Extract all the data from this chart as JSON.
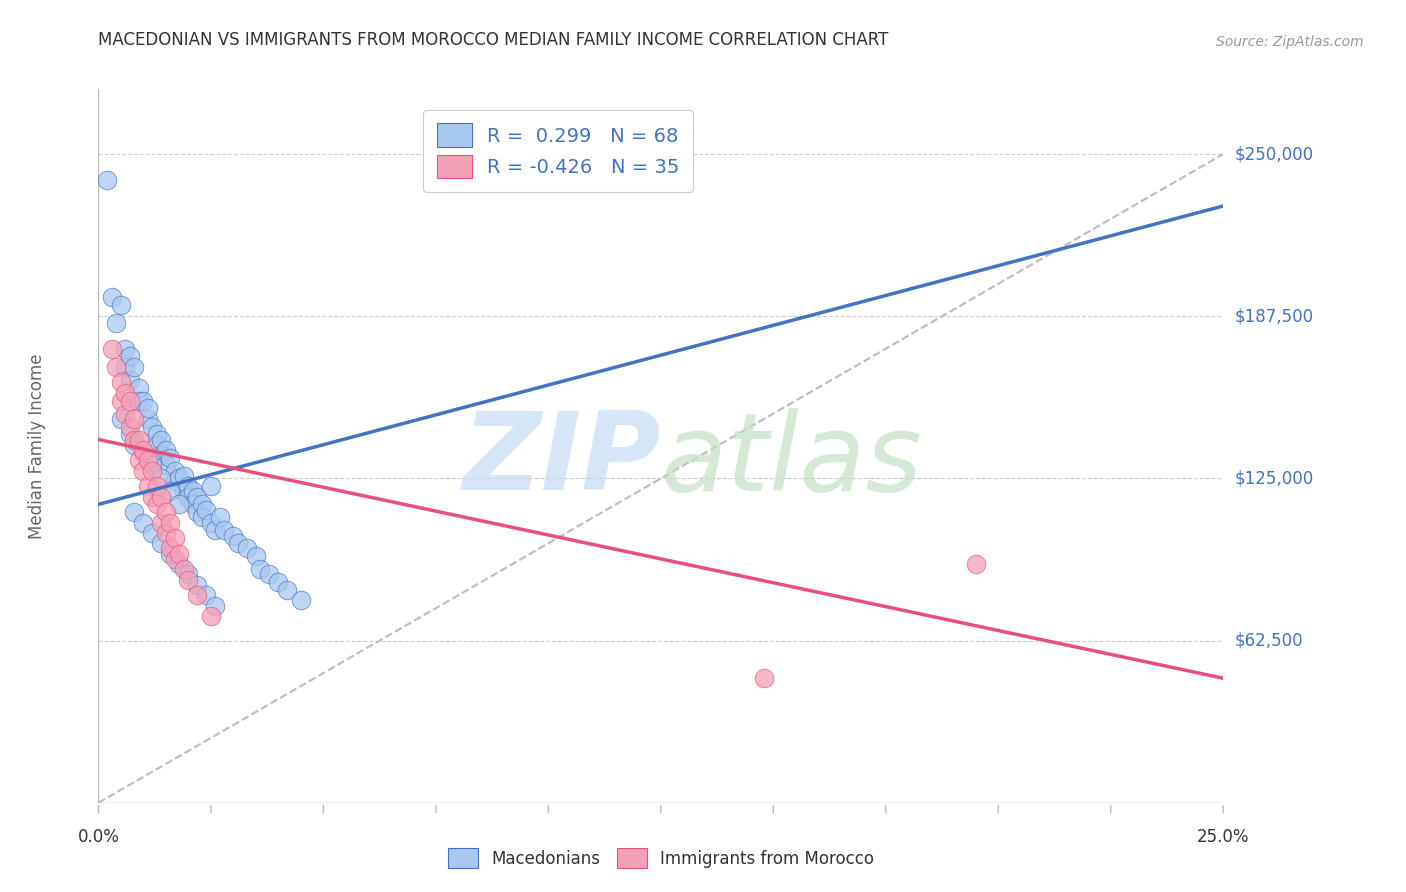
{
  "title": "MACEDONIAN VS IMMIGRANTS FROM MOROCCO MEDIAN FAMILY INCOME CORRELATION CHART",
  "source": "Source: ZipAtlas.com",
  "ylabel": "Median Family Income",
  "ytick_labels": [
    "$62,500",
    "$125,000",
    "$187,500",
    "$250,000"
  ],
  "ytick_values": [
    62500,
    125000,
    187500,
    250000
  ],
  "ymin": 0,
  "ymax": 275000,
  "xmin": 0.0,
  "xmax": 0.25,
  "blue_color": "#A8C8F0",
  "pink_color": "#F4A0B8",
  "blue_line_color": "#4472C4",
  "pink_line_color": "#E8507A",
  "dashed_line_color": "#BBBBBB",
  "background_color": "#FFFFFF",
  "macedonian_points": [
    [
      0.002,
      240000
    ],
    [
      0.003,
      195000
    ],
    [
      0.004,
      185000
    ],
    [
      0.005,
      192000
    ],
    [
      0.006,
      175000
    ],
    [
      0.006,
      168000
    ],
    [
      0.007,
      172000
    ],
    [
      0.007,
      163000
    ],
    [
      0.008,
      168000
    ],
    [
      0.009,
      160000
    ],
    [
      0.009,
      155000
    ],
    [
      0.01,
      155000
    ],
    [
      0.011,
      148000
    ],
    [
      0.011,
      152000
    ],
    [
      0.012,
      145000
    ],
    [
      0.013,
      142000
    ],
    [
      0.013,
      138000
    ],
    [
      0.014,
      140000
    ],
    [
      0.014,
      134000
    ],
    [
      0.015,
      136000
    ],
    [
      0.015,
      130000
    ],
    [
      0.016,
      133000
    ],
    [
      0.017,
      128000
    ],
    [
      0.017,
      124000
    ],
    [
      0.018,
      125000
    ],
    [
      0.019,
      126000
    ],
    [
      0.019,
      120000
    ],
    [
      0.02,
      122000
    ],
    [
      0.02,
      118000
    ],
    [
      0.021,
      120000
    ],
    [
      0.021,
      115000
    ],
    [
      0.022,
      118000
    ],
    [
      0.022,
      112000
    ],
    [
      0.023,
      115000
    ],
    [
      0.023,
      110000
    ],
    [
      0.024,
      113000
    ],
    [
      0.025,
      108000
    ],
    [
      0.025,
      122000
    ],
    [
      0.026,
      105000
    ],
    [
      0.027,
      110000
    ],
    [
      0.028,
      105000
    ],
    [
      0.03,
      103000
    ],
    [
      0.031,
      100000
    ],
    [
      0.033,
      98000
    ],
    [
      0.035,
      95000
    ],
    [
      0.036,
      90000
    ],
    [
      0.038,
      88000
    ],
    [
      0.04,
      85000
    ],
    [
      0.042,
      82000
    ],
    [
      0.045,
      78000
    ],
    [
      0.005,
      148000
    ],
    [
      0.007,
      142000
    ],
    [
      0.008,
      138000
    ],
    [
      0.01,
      135000
    ],
    [
      0.012,
      130000
    ],
    [
      0.014,
      125000
    ],
    [
      0.016,
      120000
    ],
    [
      0.018,
      115000
    ],
    [
      0.008,
      112000
    ],
    [
      0.01,
      108000
    ],
    [
      0.012,
      104000
    ],
    [
      0.014,
      100000
    ],
    [
      0.016,
      96000
    ],
    [
      0.018,
      92000
    ],
    [
      0.02,
      88000
    ],
    [
      0.022,
      84000
    ],
    [
      0.024,
      80000
    ],
    [
      0.026,
      76000
    ]
  ],
  "morocco_points": [
    [
      0.003,
      175000
    ],
    [
      0.004,
      168000
    ],
    [
      0.005,
      162000
    ],
    [
      0.005,
      155000
    ],
    [
      0.006,
      158000
    ],
    [
      0.006,
      150000
    ],
    [
      0.007,
      155000
    ],
    [
      0.007,
      145000
    ],
    [
      0.008,
      148000
    ],
    [
      0.008,
      140000
    ],
    [
      0.009,
      140000
    ],
    [
      0.009,
      132000
    ],
    [
      0.01,
      136000
    ],
    [
      0.01,
      128000
    ],
    [
      0.011,
      132000
    ],
    [
      0.011,
      122000
    ],
    [
      0.012,
      128000
    ],
    [
      0.012,
      118000
    ],
    [
      0.013,
      122000
    ],
    [
      0.013,
      115000
    ],
    [
      0.014,
      118000
    ],
    [
      0.014,
      108000
    ],
    [
      0.015,
      112000
    ],
    [
      0.015,
      104000
    ],
    [
      0.016,
      108000
    ],
    [
      0.016,
      98000
    ],
    [
      0.017,
      102000
    ],
    [
      0.017,
      94000
    ],
    [
      0.018,
      96000
    ],
    [
      0.019,
      90000
    ],
    [
      0.02,
      86000
    ],
    [
      0.022,
      80000
    ],
    [
      0.025,
      72000
    ],
    [
      0.148,
      48000
    ],
    [
      0.195,
      92000
    ]
  ],
  "blue_trendline": [
    [
      0.0,
      115000
    ],
    [
      0.25,
      230000
    ]
  ],
  "pink_trendline": [
    [
      0.0,
      140000
    ],
    [
      0.25,
      48000
    ]
  ],
  "dashed_trendline": [
    [
      0.0,
      0
    ],
    [
      0.25,
      250000
    ]
  ]
}
